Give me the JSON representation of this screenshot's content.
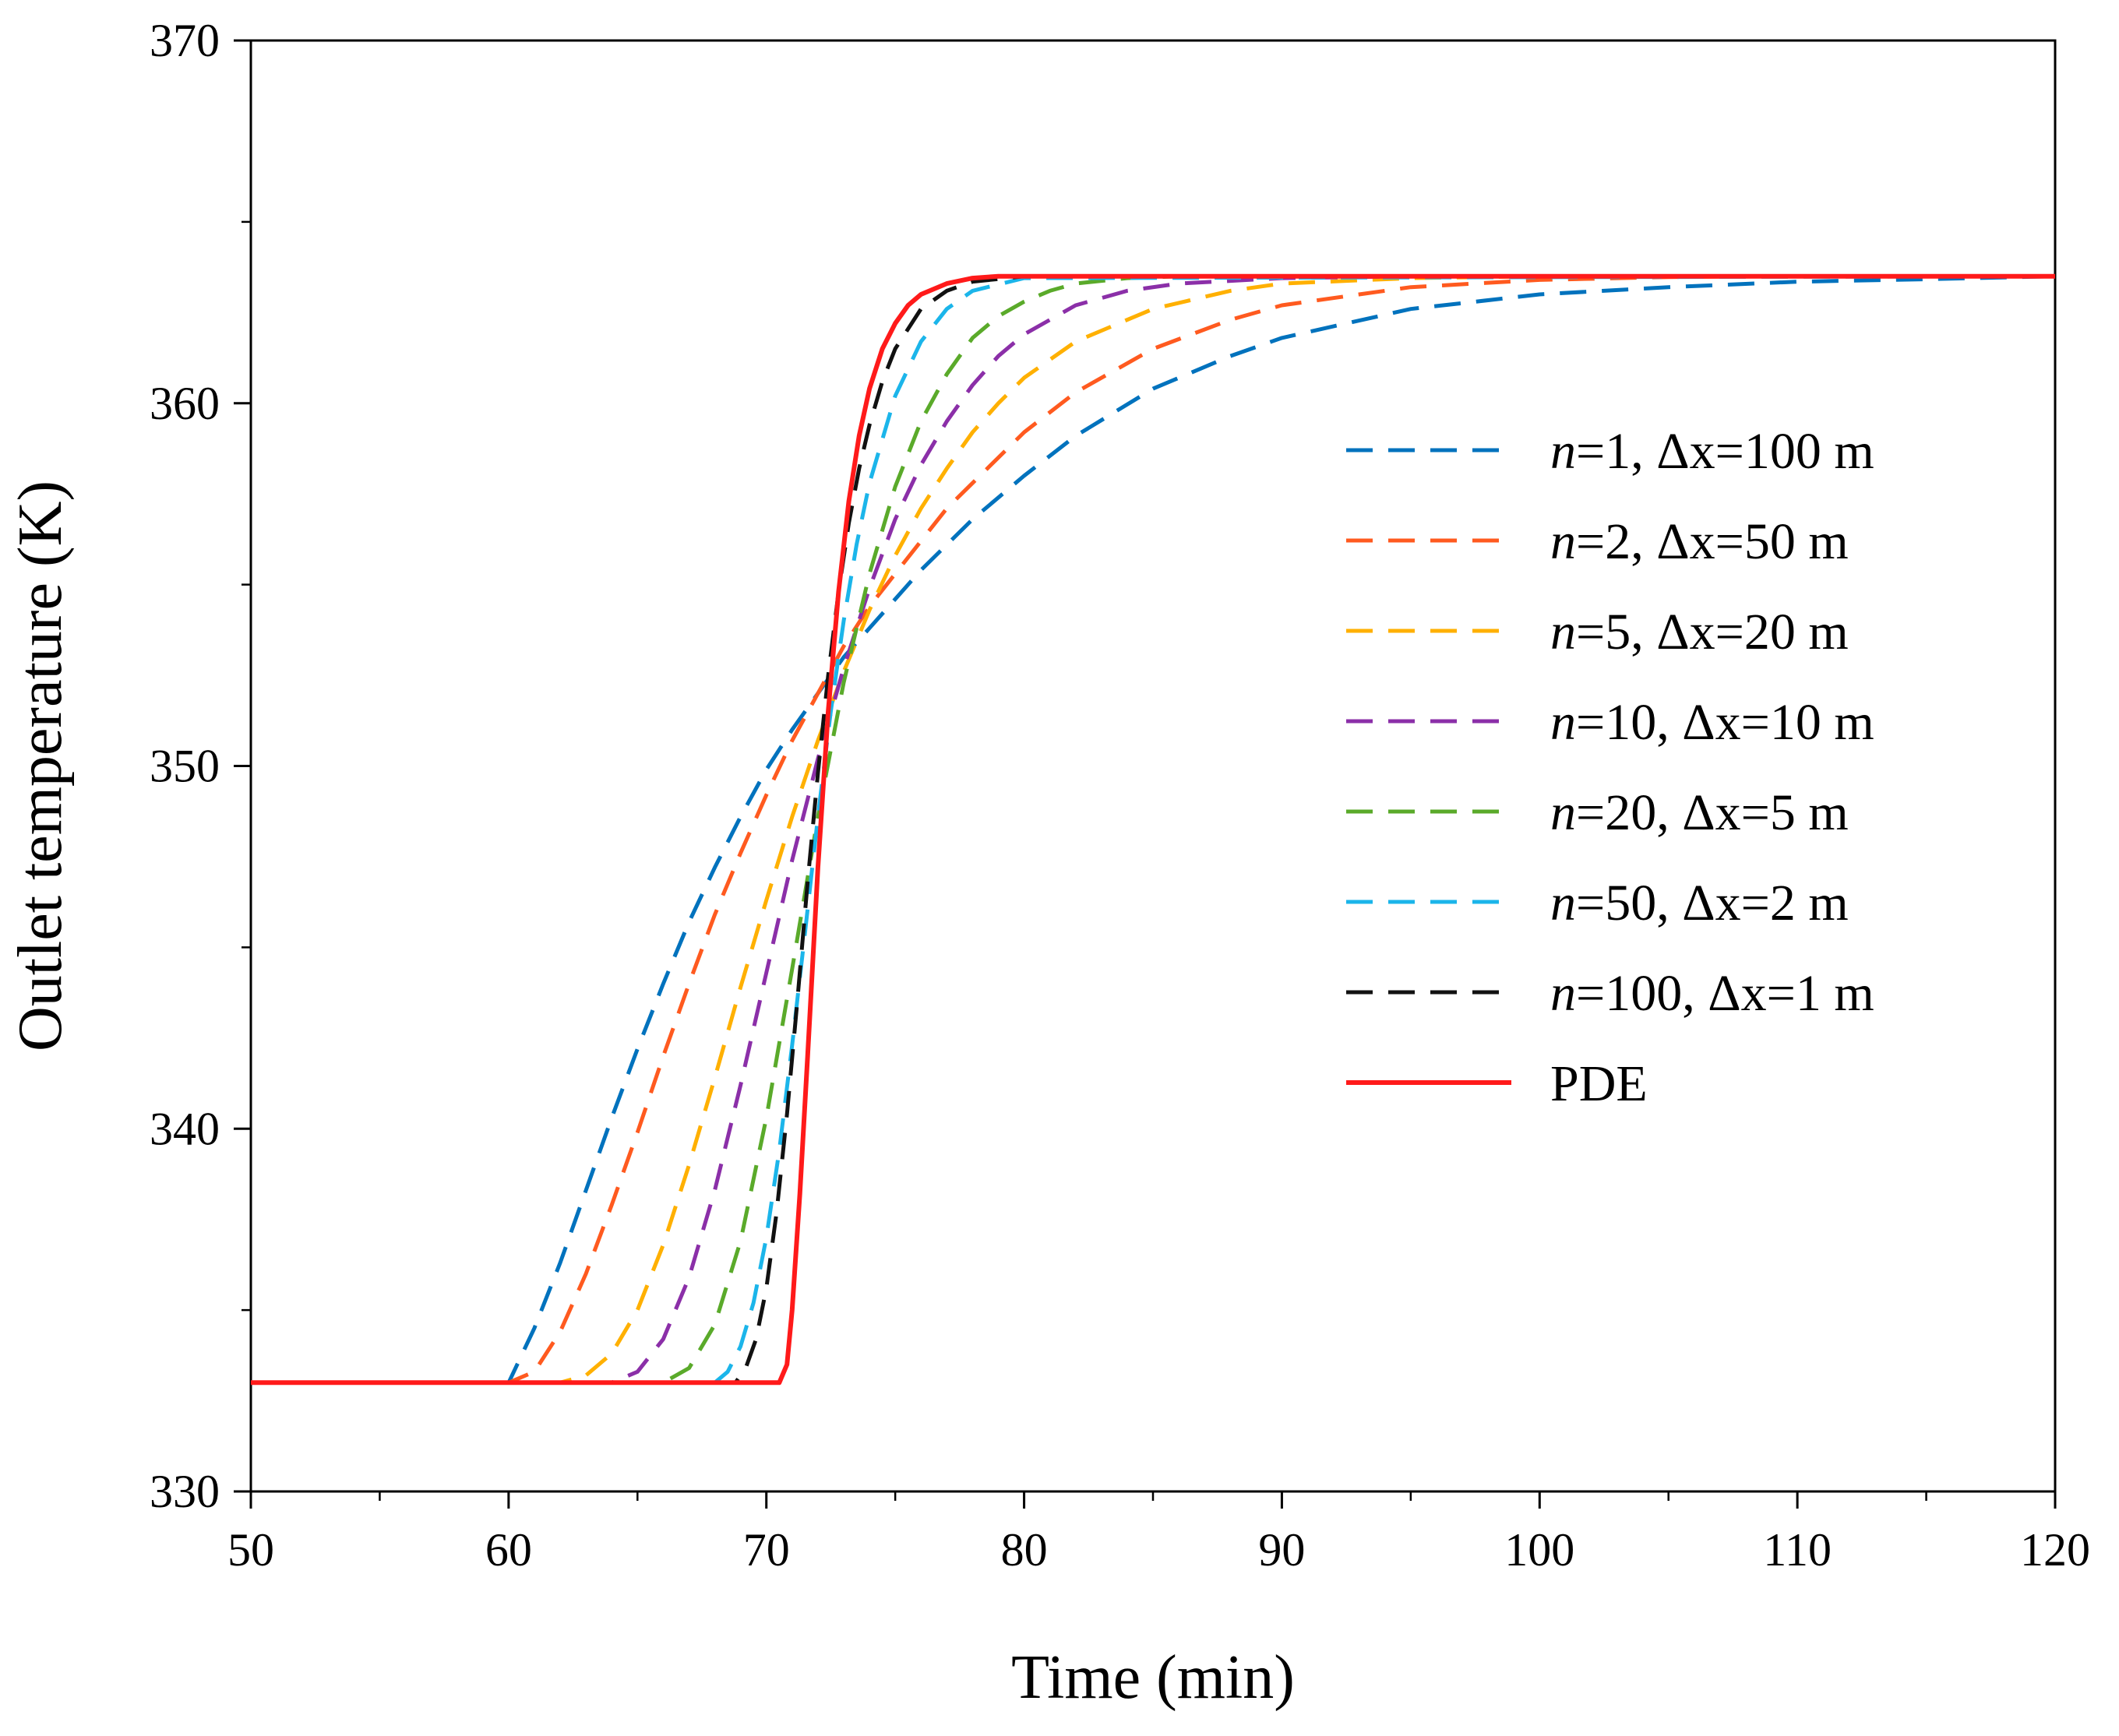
{
  "chart_data": {
    "type": "line",
    "title": "",
    "xlabel": "Time (min)",
    "ylabel": "Outlet temperature (K)",
    "xlim": [
      50,
      120
    ],
    "ylim": [
      330,
      370
    ],
    "xticks": [
      50,
      60,
      70,
      80,
      90,
      100,
      110,
      120
    ],
    "yticks": [
      330,
      340,
      350,
      360,
      370
    ],
    "grid": false,
    "legend_position": "right",
    "series": [
      {
        "name": "n=1, Δx=100 m",
        "italic_prefix": "n",
        "rest": "=1, Δx=100 m",
        "color": "#0072bd",
        "dash": true,
        "x": [
          50,
          60,
          61,
          62,
          63,
          64,
          65,
          66,
          67,
          68,
          69,
          70,
          71,
          72,
          73,
          74,
          75,
          76,
          77,
          78,
          80,
          82,
          85,
          88,
          90,
          95,
          100,
          105,
          110,
          115,
          120
        ],
        "y": [
          333,
          333,
          334.5,
          336.3,
          338.3,
          340.3,
          342.2,
          344,
          345.7,
          347.2,
          348.6,
          349.9,
          351,
          352,
          353,
          353.8,
          354.6,
          355.4,
          356.1,
          356.8,
          358,
          359.1,
          360.4,
          361.3,
          361.8,
          362.6,
          363,
          363.2,
          363.35,
          363.42,
          363.5
        ]
      },
      {
        "name": "n=2, Δx=50 m",
        "italic_prefix": "n",
        "rest": "=2, Δx=50 m",
        "color": "#ff5a1f",
        "dash": true,
        "x": [
          50,
          60,
          61,
          62,
          63,
          64,
          65,
          66,
          67,
          68,
          69,
          70,
          71,
          72,
          73,
          74,
          75,
          76,
          77,
          78,
          80,
          82,
          85,
          88,
          90,
          95,
          100,
          105,
          110,
          120
        ],
        "y": [
          333,
          333,
          333.3,
          334.4,
          336,
          337.9,
          339.9,
          342,
          344,
          345.9,
          347.6,
          349.2,
          350.7,
          352,
          353.3,
          354.4,
          355.3,
          356.2,
          357.1,
          357.8,
          359.2,
          360.3,
          361.5,
          362.3,
          362.7,
          363.2,
          363.4,
          363.48,
          363.5,
          363.5
        ]
      },
      {
        "name": "n=5, Δx=20 m",
        "italic_prefix": "n",
        "rest": "=5, Δx=20 m",
        "color": "#ffb000",
        "dash": true,
        "x": [
          50,
          62,
          63,
          64,
          65,
          66,
          67,
          68,
          69,
          70,
          71,
          72,
          73,
          74,
          75,
          76,
          77,
          78,
          79,
          80,
          82,
          85,
          88,
          90,
          95,
          100,
          120
        ],
        "y": [
          333,
          333,
          333.2,
          333.8,
          335,
          336.8,
          339,
          341.4,
          343.9,
          346.3,
          348.6,
          350.7,
          352.6,
          354.3,
          355.8,
          357.1,
          358.2,
          359.2,
          360,
          360.7,
          361.7,
          362.6,
          363.1,
          363.3,
          363.45,
          363.5,
          363.5
        ]
      },
      {
        "name": "n=10, Δx=10 m",
        "italic_prefix": "n",
        "rest": "=10, Δx=10 m",
        "color": "#8b2fa8",
        "dash": true,
        "x": [
          50,
          64,
          65,
          66,
          67,
          68,
          69,
          70,
          71,
          72,
          73,
          74,
          75,
          76,
          77,
          78,
          79,
          80,
          82,
          84,
          86,
          90,
          95,
          120
        ],
        "y": [
          333,
          333,
          333.3,
          334.2,
          335.9,
          338.3,
          341.2,
          344.3,
          347.4,
          350.2,
          352.7,
          354.9,
          356.8,
          358.3,
          359.5,
          360.5,
          361.3,
          361.9,
          362.7,
          363.1,
          363.3,
          363.45,
          363.5,
          363.5
        ]
      },
      {
        "name": "n=20, Δx=5 m",
        "italic_prefix": "n",
        "rest": "=20, Δx=5 m",
        "color": "#5aaa2a",
        "dash": true,
        "x": [
          50,
          66,
          67,
          68,
          69,
          70,
          71,
          72,
          73,
          74,
          75,
          76,
          77,
          78,
          79,
          80,
          81,
          82,
          84,
          86,
          120
        ],
        "y": [
          333,
          333,
          333.4,
          334.6,
          336.9,
          340.3,
          344.4,
          348.6,
          352.3,
          355.3,
          357.7,
          359.5,
          360.8,
          361.8,
          362.4,
          362.8,
          363.1,
          363.3,
          363.45,
          363.5,
          363.5
        ]
      },
      {
        "name": "n=50, Δx=2 m",
        "italic_prefix": "n",
        "rest": "=50, Δx=2 m",
        "color": "#1bb5ea",
        "dash": true,
        "x": [
          50,
          68,
          68.5,
          69,
          69.5,
          70,
          70.5,
          71,
          71.5,
          72,
          72.5,
          73,
          73.5,
          74,
          75,
          76,
          77,
          78,
          80,
          120
        ],
        "y": [
          333,
          333,
          333.3,
          334,
          335.2,
          337,
          339.4,
          342.3,
          345.4,
          348.6,
          351.5,
          354,
          356.1,
          357.8,
          360.2,
          361.7,
          362.6,
          363.1,
          363.45,
          363.5
        ]
      },
      {
        "name": "n=100, Δx=1 m",
        "italic_prefix": "n",
        "rest": "=100, Δx=1 m",
        "color": "#111111",
        "dash": true,
        "x": [
          50,
          68.8,
          69.2,
          69.6,
          70,
          70.4,
          70.8,
          71.2,
          71.6,
          72,
          72.4,
          72.8,
          73.2,
          73.6,
          74,
          74.5,
          75,
          76,
          77,
          78,
          80,
          120
        ],
        "y": [
          333,
          333,
          333.4,
          334.2,
          335.6,
          337.7,
          340.4,
          343.5,
          346.8,
          349.8,
          352.5,
          354.8,
          356.7,
          358.2,
          359.4,
          360.6,
          361.5,
          362.6,
          363.1,
          363.35,
          363.5,
          363.5
        ]
      },
      {
        "name": "PDE",
        "italic_prefix": "",
        "rest": "PDE",
        "color": "#ff1a1a",
        "dash": false,
        "x": [
          50,
          70.5,
          70.8,
          71,
          71.3,
          71.6,
          72,
          72.4,
          72.8,
          73.2,
          73.6,
          74,
          74.5,
          75,
          75.5,
          76,
          77,
          78,
          79,
          80,
          120
        ],
        "y": [
          333,
          333,
          333.5,
          335,
          338.2,
          342,
          347.2,
          351.5,
          354.8,
          357.3,
          359.1,
          360.4,
          361.5,
          362.2,
          362.7,
          363,
          363.3,
          363.45,
          363.5,
          363.5,
          363.5
        ]
      }
    ]
  }
}
